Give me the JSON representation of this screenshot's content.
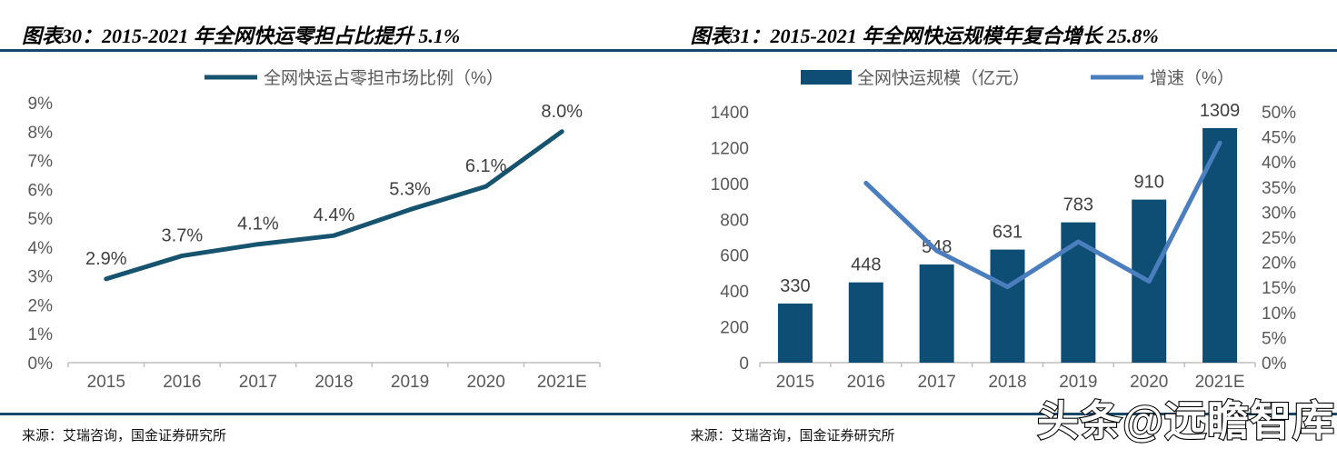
{
  "colors": {
    "rule": "#17476B",
    "bar": "#0E4E74",
    "line_primary": "#16536F",
    "line_secondary": "#4A7EBE",
    "axis_text": "#595959",
    "data_label_text": "#404040",
    "axis_line": "#BFBFBF"
  },
  "watermark": "头条@远瞻智库",
  "chart_data": [
    {
      "type": "line",
      "title": "图表30：2015-2021 年全网快运零担占比提升 5.1%",
      "source": "来源：艾瑞咨询，国金证券研究所",
      "categories": [
        "2015",
        "2016",
        "2017",
        "2018",
        "2019",
        "2020",
        "2021E"
      ],
      "series": [
        {
          "name": "全网快运占零担市场比例（%）",
          "type": "line",
          "axis": "left",
          "color": "#16536F",
          "values": [
            2.9,
            3.7,
            4.1,
            4.4,
            5.3,
            6.1,
            8.0
          ],
          "labels": [
            "2.9%",
            "3.7%",
            "4.1%",
            "4.4%",
            "5.3%",
            "6.1%",
            "8.0%"
          ]
        }
      ],
      "left_axis": {
        "min": 0,
        "max": 9,
        "step": 1,
        "format": "percent"
      },
      "legend_position": "top",
      "grid": false
    },
    {
      "type": "combo",
      "title": "图表31：2015-2021 年全网快运规模年复合增长 25.8%",
      "source": "来源：艾瑞咨询，国金证券研究所",
      "categories": [
        "2015",
        "2016",
        "2017",
        "2018",
        "2019",
        "2020",
        "2021E"
      ],
      "series": [
        {
          "name": "全网快运规模（亿元）",
          "type": "bar",
          "axis": "left",
          "color": "#0E4E74",
          "values": [
            330,
            448,
            548,
            631,
            783,
            910,
            1309
          ],
          "labels": [
            "330",
            "448",
            "548",
            "631",
            "783",
            "910",
            "1309"
          ]
        },
        {
          "name": "增速（%）",
          "type": "line",
          "axis": "right",
          "color": "#4A7EBE",
          "values": [
            null,
            35.8,
            22.3,
            15.1,
            24.1,
            16.2,
            43.8
          ],
          "labels": null
        }
      ],
      "left_axis": {
        "min": 0,
        "max": 1400,
        "step": 200
      },
      "right_axis": {
        "min": 0,
        "max": 50,
        "step": 5,
        "format": "percent"
      },
      "legend_position": "top",
      "grid": false
    }
  ]
}
